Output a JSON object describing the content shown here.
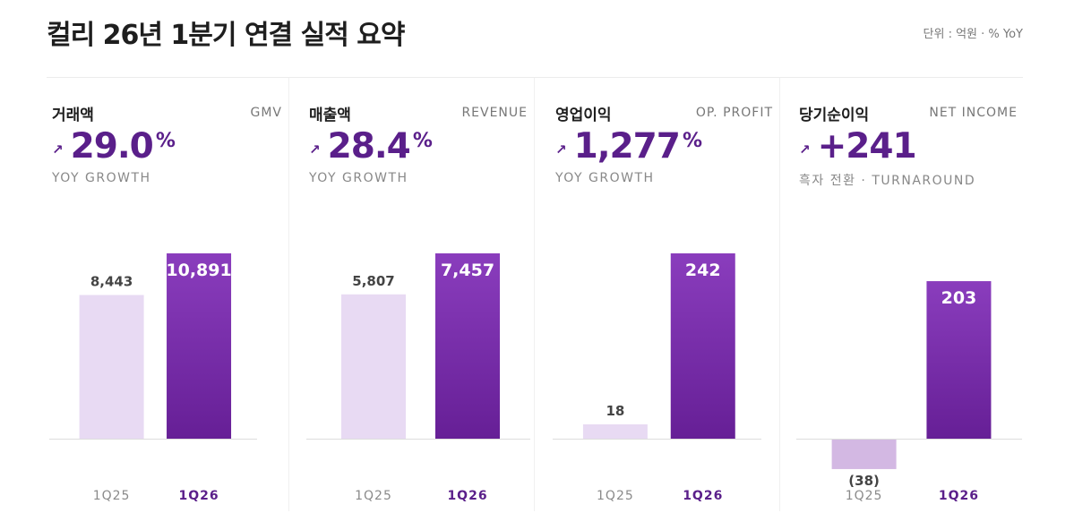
{
  "header": {
    "title": "컬리 26년 1분기 연결 실적 요약",
    "unit_note": "단위 : 억원 · % YoY"
  },
  "colors": {
    "accent": "#5a1f8a",
    "bar_current_top": "#8a3dbd",
    "bar_current_bottom": "#661f96",
    "bar_prior": "#e8daf3",
    "bar_prior_negative": "#d3b8e3"
  },
  "panels": [
    {
      "kor_label": "거래액",
      "eng_label": "GMV",
      "arrow_icon": "↗",
      "headline": "29.0",
      "headline_suffix": "%",
      "caption": "YOY GROWTH"
    },
    {
      "kor_label": "매출액",
      "eng_label": "REVENUE",
      "arrow_icon": "↗",
      "headline": "28.4",
      "headline_suffix": "%",
      "caption": "YOY GROWTH"
    },
    {
      "kor_label": "영업이익",
      "eng_label": "OP. PROFIT",
      "arrow_icon": "↗",
      "headline": "1,277",
      "headline_suffix": "%",
      "caption": "YOY GROWTH"
    },
    {
      "kor_label": "당기순이익",
      "eng_label": "NET INCOME",
      "arrow_icon": "↗",
      "headline": "+241",
      "headline_suffix": "",
      "caption": "흑자 전환 · TURNAROUND"
    }
  ],
  "chart_data": [
    {
      "type": "bar",
      "categories": [
        "1Q25",
        "1Q26"
      ],
      "values": [
        8443,
        10891
      ],
      "value_labels": [
        "8,443",
        "10,891"
      ]
    },
    {
      "type": "bar",
      "categories": [
        "1Q25",
        "1Q26"
      ],
      "values": [
        5807,
        7457
      ],
      "value_labels": [
        "5,807",
        "7,457"
      ]
    },
    {
      "type": "bar",
      "categories": [
        "1Q25",
        "1Q26"
      ],
      "values": [
        18,
        242
      ],
      "value_labels": [
        "18",
        "242"
      ]
    },
    {
      "type": "bar",
      "categories": [
        "1Q25",
        "1Q26"
      ],
      "values": [
        -38,
        203
      ],
      "value_labels": [
        "(38)",
        "203"
      ]
    }
  ]
}
